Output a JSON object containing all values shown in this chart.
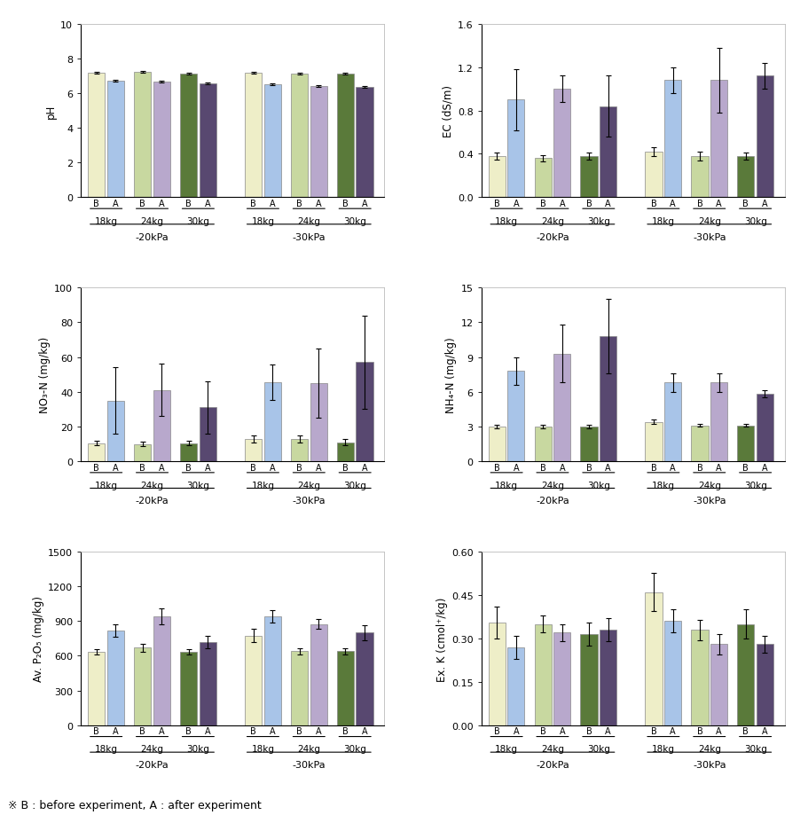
{
  "panels": [
    {
      "ylabel": "pH",
      "ylim": [
        0,
        10
      ],
      "yticks": [
        0,
        2,
        4,
        6,
        8,
        10
      ],
      "groups": [
        {
          "B": 7.15,
          "A": 6.7,
          "B_err": 0.05,
          "A_err": 0.05
        },
        {
          "B": 7.2,
          "A": 6.65,
          "B_err": 0.05,
          "A_err": 0.05
        },
        {
          "B": 7.1,
          "A": 6.55,
          "B_err": 0.05,
          "A_err": 0.05
        },
        {
          "B": 7.15,
          "A": 6.5,
          "B_err": 0.05,
          "A_err": 0.05
        },
        {
          "B": 7.1,
          "A": 6.4,
          "B_err": 0.05,
          "A_err": 0.05
        },
        {
          "B": 7.1,
          "A": 6.35,
          "B_err": 0.05,
          "A_err": 0.05
        }
      ]
    },
    {
      "ylabel": "EC (dS/m)",
      "ylim": [
        0.0,
        1.6
      ],
      "yticks": [
        0.0,
        0.4,
        0.8,
        1.2,
        1.6
      ],
      "groups": [
        {
          "B": 0.38,
          "A": 0.9,
          "B_err": 0.03,
          "A_err": 0.28
        },
        {
          "B": 0.36,
          "A": 1.0,
          "B_err": 0.03,
          "A_err": 0.12
        },
        {
          "B": 0.38,
          "A": 0.84,
          "B_err": 0.03,
          "A_err": 0.28
        },
        {
          "B": 0.42,
          "A": 1.08,
          "B_err": 0.04,
          "A_err": 0.12
        },
        {
          "B": 0.38,
          "A": 1.08,
          "B_err": 0.04,
          "A_err": 0.3
        },
        {
          "B": 0.38,
          "A": 1.12,
          "B_err": 0.03,
          "A_err": 0.12
        }
      ]
    },
    {
      "ylabel": "NO₃-N (mg/kg)",
      "ylim": [
        0,
        100
      ],
      "yticks": [
        0,
        20,
        40,
        60,
        80,
        100
      ],
      "groups": [
        {
          "B": 10.5,
          "A": 35.0,
          "B_err": 1.5,
          "A_err": 19.0
        },
        {
          "B": 10.0,
          "A": 41.0,
          "B_err": 1.5,
          "A_err": 15.0
        },
        {
          "B": 10.5,
          "A": 31.0,
          "B_err": 1.5,
          "A_err": 15.0
        },
        {
          "B": 13.0,
          "A": 45.5,
          "B_err": 2.0,
          "A_err": 10.0
        },
        {
          "B": 13.0,
          "A": 45.0,
          "B_err": 2.0,
          "A_err": 20.0
        },
        {
          "B": 11.0,
          "A": 57.0,
          "B_err": 2.0,
          "A_err": 27.0
        }
      ]
    },
    {
      "ylabel": "NH₄-N (mg/kg)",
      "ylim": [
        0,
        15
      ],
      "yticks": [
        0,
        3,
        6,
        9,
        12,
        15
      ],
      "groups": [
        {
          "B": 3.0,
          "A": 7.8,
          "B_err": 0.15,
          "A_err": 1.2
        },
        {
          "B": 3.0,
          "A": 9.3,
          "B_err": 0.15,
          "A_err": 2.5
        },
        {
          "B": 3.0,
          "A": 10.8,
          "B_err": 0.15,
          "A_err": 3.2
        },
        {
          "B": 3.4,
          "A": 6.8,
          "B_err": 0.2,
          "A_err": 0.8
        },
        {
          "B": 3.1,
          "A": 6.8,
          "B_err": 0.1,
          "A_err": 0.8
        },
        {
          "B": 3.1,
          "A": 5.8,
          "B_err": 0.1,
          "A_err": 0.3
        }
      ]
    },
    {
      "ylabel": "Av. P₂O₅ (mg/kg)",
      "ylim": [
        0,
        1500
      ],
      "yticks": [
        0,
        300,
        600,
        900,
        1200,
        1500
      ],
      "groups": [
        {
          "B": 635,
          "A": 820,
          "B_err": 25,
          "A_err": 55
        },
        {
          "B": 670,
          "A": 940,
          "B_err": 35,
          "A_err": 70
        },
        {
          "B": 635,
          "A": 720,
          "B_err": 25,
          "A_err": 55
        },
        {
          "B": 775,
          "A": 940,
          "B_err": 55,
          "A_err": 55
        },
        {
          "B": 640,
          "A": 875,
          "B_err": 25,
          "A_err": 45
        },
        {
          "B": 640,
          "A": 800,
          "B_err": 25,
          "A_err": 65
        }
      ]
    },
    {
      "ylabel": "Ex. K (cmol⁺/kg)",
      "ylim": [
        0.0,
        0.6
      ],
      "yticks": [
        0.0,
        0.15,
        0.3,
        0.45,
        0.6
      ],
      "groups": [
        {
          "B": 0.355,
          "A": 0.27,
          "B_err": 0.055,
          "A_err": 0.04
        },
        {
          "B": 0.35,
          "A": 0.32,
          "B_err": 0.03,
          "A_err": 0.03
        },
        {
          "B": 0.315,
          "A": 0.33,
          "B_err": 0.04,
          "A_err": 0.04
        },
        {
          "B": 0.46,
          "A": 0.36,
          "B_err": 0.065,
          "A_err": 0.04
        },
        {
          "B": 0.33,
          "A": 0.28,
          "B_err": 0.035,
          "A_err": 0.035
        },
        {
          "B": 0.35,
          "A": 0.28,
          "B_err": 0.05,
          "A_err": 0.03
        }
      ]
    }
  ],
  "B_colors_by_kg": [
    "#eeeec8",
    "#c8d8a0",
    "#5a7a3a"
  ],
  "A_colors_by_kg": [
    "#a8c4e8",
    "#b8a8cc",
    "#584870"
  ],
  "pressure_labels": [
    "-20kPa",
    "-30kPa"
  ],
  "kg_labels": [
    "18kg",
    "24kg",
    "30kg",
    "18kg",
    "24kg",
    "30kg"
  ],
  "footnote": "※ B : before experiment, A : after experiment"
}
